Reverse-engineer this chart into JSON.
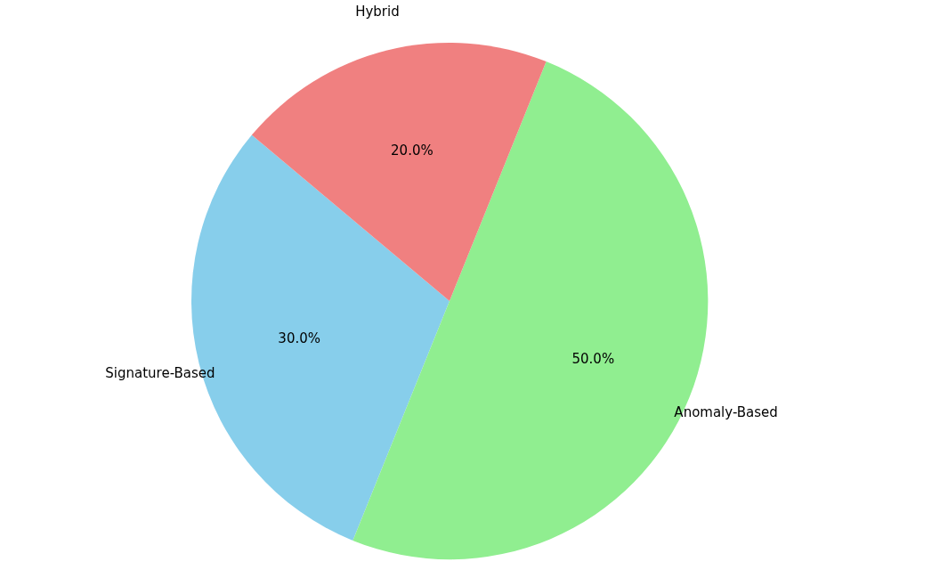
{
  "chart_data": {
    "type": "pie",
    "categories": [
      "Signature-Based",
      "Anomaly-Based",
      "Hybrid"
    ],
    "values": [
      30,
      50,
      20
    ],
    "colors": [
      "#87ceeb",
      "#90ee90",
      "#f08080"
    ],
    "value_labels": [
      "30.0%",
      "50.0%",
      "20.0%"
    ],
    "legend": false
  }
}
